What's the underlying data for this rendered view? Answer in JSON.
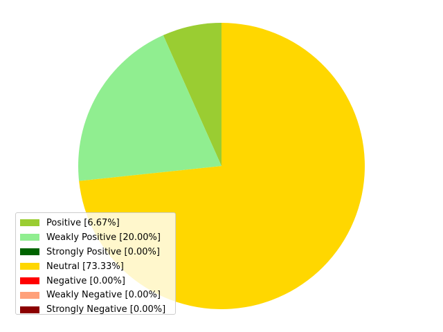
{
  "chart_data": {
    "type": "pie",
    "title": "",
    "start_angle_deg": 90,
    "direction": "counterclockwise",
    "slices": [
      {
        "label": "Positive [6.67%]",
        "value": 6.67,
        "color": "#9acd32"
      },
      {
        "label": "Weakly Positive [20.00%]",
        "value": 20.0,
        "color": "#90ee90"
      },
      {
        "label": "Strongly Positive [0.00%]",
        "value": 0.0,
        "color": "#006400"
      },
      {
        "label": "Neutral [73.33%]",
        "value": 73.33,
        "color": "#ffd700"
      },
      {
        "label": "Negative [0.00%]",
        "value": 0.0,
        "color": "#ff0000"
      },
      {
        "label": "Weakly Negative [0.00%]",
        "value": 0.0,
        "color": "#ffa07a"
      },
      {
        "label": "Strongly Negative [0.00%]",
        "value": 0.0,
        "color": "#8b0000"
      }
    ],
    "legend_position": "lower-left"
  }
}
